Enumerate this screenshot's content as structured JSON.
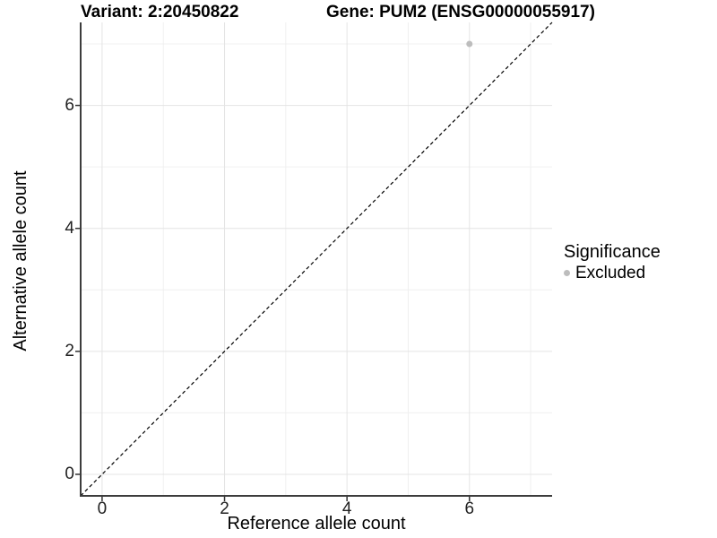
{
  "titles": {
    "left": "Variant: 2:20450822",
    "right": "Gene: PUM2 (ENSG00000055917)"
  },
  "legend": {
    "title": "Significance",
    "items": [
      {
        "label": "Excluded",
        "color": "#bdbdbd"
      }
    ]
  },
  "colors": {
    "point": "#bdbdbd",
    "grid_major": "#e4e4e4",
    "grid_minor": "#f0f0f0",
    "axis_line": "#3c3c3c",
    "tick_mark": "#333333",
    "reference_line": "#000000"
  },
  "chart_data": {
    "type": "scatter",
    "title": "Variant: 2:20450822  /  Gene: PUM2 (ENSG00000055917)",
    "xlabel": "Reference allele count",
    "ylabel": "Alternative allele count",
    "xlim": [
      -0.35,
      7.35
    ],
    "ylim": [
      -0.35,
      7.35
    ],
    "xticks": [
      0,
      2,
      4,
      6
    ],
    "yticks": [
      0,
      2,
      4,
      6
    ],
    "grid": {
      "major": [
        0,
        2,
        4,
        6
      ],
      "minor": [
        1,
        3,
        5,
        7
      ]
    },
    "points": [
      {
        "x": 6,
        "y": 7,
        "significance": "Excluded"
      }
    ],
    "reference_line": {
      "slope": 1,
      "intercept": 0,
      "style": "dashed"
    },
    "legend_position": "right",
    "legend_title": "Significance",
    "legend_entries": [
      "Excluded"
    ]
  }
}
